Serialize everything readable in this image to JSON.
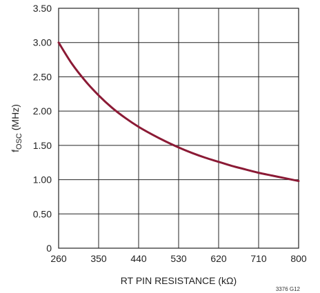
{
  "chart_data": {
    "type": "line",
    "title": "",
    "xlabel": "RT PIN RESISTANCE (kΩ)",
    "ylabel": {
      "prefix": "f",
      "subscript": "OSC",
      "suffix": " (MHz)"
    },
    "xlim": [
      260,
      800
    ],
    "ylim": [
      0,
      3.5
    ],
    "x_ticks": [
      260,
      350,
      440,
      530,
      620,
      710,
      800
    ],
    "x_tick_labels": [
      "260",
      "350",
      "440",
      "530",
      "620",
      "710",
      "800"
    ],
    "y_ticks": [
      0,
      0.5,
      1.0,
      1.5,
      2.0,
      2.5,
      3.0,
      3.5
    ],
    "y_tick_labels": [
      "0",
      "0.50",
      "1.00",
      "1.50",
      "2.00",
      "2.50",
      "3.00",
      "3.50"
    ],
    "grid": true,
    "legend": "none",
    "series": [
      {
        "color": "#8b1a35",
        "x": [
          260,
          290,
          320,
          350,
          380,
          410,
          440,
          470,
          500,
          530,
          560,
          590,
          620,
          650,
          680,
          710,
          740,
          770,
          800
        ],
        "y": [
          3.0,
          2.69,
          2.44,
          2.23,
          2.05,
          1.9,
          1.77,
          1.66,
          1.56,
          1.47,
          1.39,
          1.32,
          1.26,
          1.2,
          1.15,
          1.1,
          1.06,
          1.02,
          0.98
        ]
      }
    ]
  },
  "figure_id": "3376 G12"
}
